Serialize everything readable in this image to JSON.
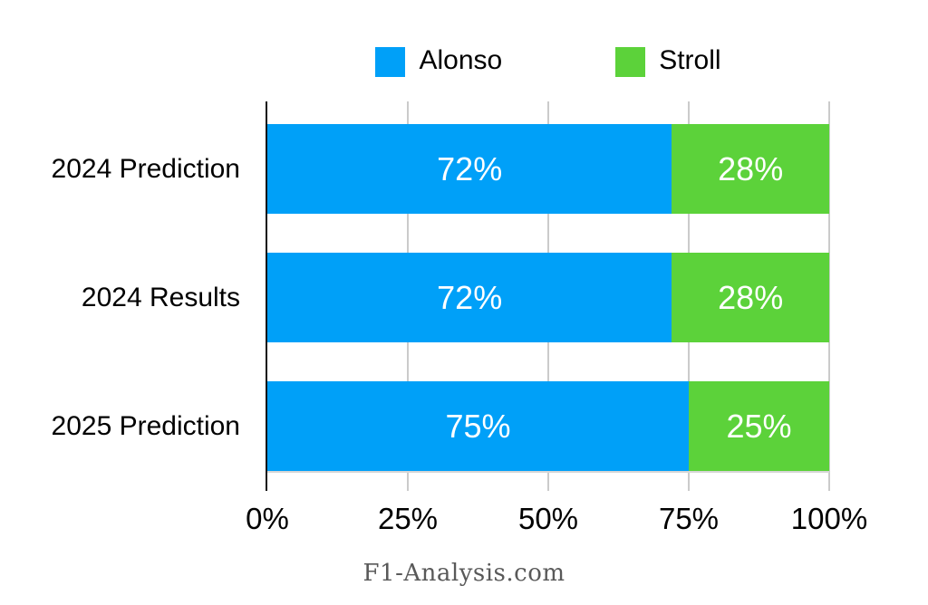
{
  "chart_data": {
    "type": "bar",
    "orientation": "horizontal",
    "stacked": true,
    "categories": [
      "2024 Prediction",
      "2024 Results",
      "2025 Prediction"
    ],
    "series": [
      {
        "name": "Alonso",
        "color": "#00A0F8",
        "values": [
          72,
          72,
          75
        ]
      },
      {
        "name": "Stroll",
        "color": "#5CD23A",
        "values": [
          28,
          28,
          25
        ]
      }
    ],
    "x_ticks": [
      "0%",
      "25%",
      "50%",
      "75%",
      "100%"
    ],
    "xlim": [
      0,
      100
    ],
    "value_suffix": "%",
    "grid": true,
    "legend_position": "top",
    "axis_color": "#111111",
    "gridline_color": "#cbcbcb",
    "value_label_color": "#ffffff"
  },
  "footer": {
    "text": "F1-Analysis.com"
  }
}
